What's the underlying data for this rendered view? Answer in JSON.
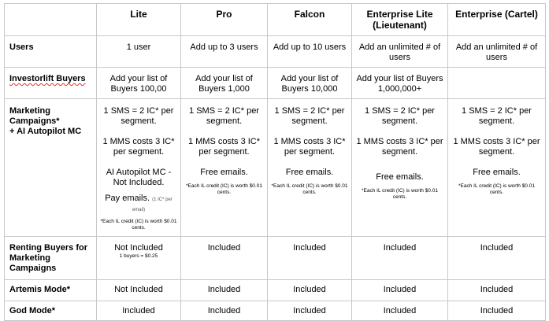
{
  "columns": [
    "Lite",
    "Pro",
    "Falcon",
    "Enterprise Lite (Lieutenant)",
    "Enterprise (Cartel)"
  ],
  "rows": {
    "users": {
      "label": "Users",
      "values": [
        "1 user",
        "Add up to 3 users",
        "Add up to 10 users",
        "Add an unlimited # of users",
        "Add an unlimited # of users"
      ]
    },
    "investorlift": {
      "label": "Investorlift Buyers",
      "values": [
        "Add your list of Buyers 100,00",
        "Add your list of Buyers 1,000",
        "Add your list of Buyers 10,000",
        "Add your list of Buyers 1,000,000+",
        ""
      ]
    },
    "marketing": {
      "label_line1": "Marketing Campaigns*",
      "label_line2": "+ AI Autopilot MC",
      "sms": "1 SMS =  2 IC* per segment.",
      "mms": "1 MMS costs 3 IC* per segment.",
      "lite_ai": "AI Autopilot MC - Not Included.",
      "lite_pay": "Pay emails.",
      "lite_pay_note": "(1 IC* per email)",
      "free_emails": "Free emails.",
      "ic_note": "*Each IL credit (IC) is worth $0.01 cents."
    },
    "renting": {
      "label": "Renting Buyers for Marketing Campaigns",
      "lite": "Not Included",
      "lite_note": "1 buyers = $0.25",
      "values": [
        "Included",
        "Included",
        "Included",
        "Included"
      ]
    },
    "artemis": {
      "label": "Artemis Mode*",
      "values": [
        "Not Included",
        "Included",
        "Included",
        "Included",
        "Included"
      ]
    },
    "god": {
      "label": "God Mode*",
      "values": [
        "Included",
        "Included",
        "Included",
        "Included",
        "Included"
      ]
    }
  }
}
